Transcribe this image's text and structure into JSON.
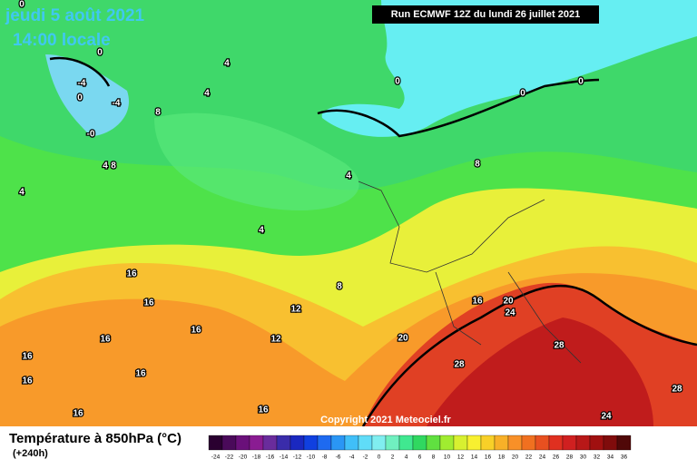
{
  "header": {
    "date": "jeudi 5 août 2021",
    "time": "14:00 locale",
    "run": "Run ECMWF 12Z du lundi 26 juillet 2021",
    "copyright": "Copyright 2021 Meteociel.fr"
  },
  "legend": {
    "title": "Température à 850hPa (°C)",
    "lead": "(+240h)",
    "labels": [
      -24,
      -22,
      -20,
      -18,
      -16,
      -14,
      -12,
      -10,
      -8,
      -6,
      -4,
      -2,
      0,
      2,
      4,
      6,
      8,
      10,
      12,
      14,
      16,
      18,
      20,
      22,
      24,
      26,
      28,
      30,
      32,
      34,
      36
    ],
    "colors": [
      "#2a0030",
      "#4a0a5a",
      "#6a107a",
      "#8a1c92",
      "#6a2c9c",
      "#3a2caa",
      "#1a28c0",
      "#1040e0",
      "#1e6af0",
      "#2a96f5",
      "#40bff8",
      "#60dcf8",
      "#80eef0",
      "#70f0c0",
      "#40e890",
      "#30d860",
      "#60e040",
      "#a0ec30",
      "#d8f030",
      "#f8f030",
      "#f8d028",
      "#f8b028",
      "#f89028",
      "#f07020",
      "#e85020",
      "#e03020",
      "#d02020",
      "#b81818",
      "#a01010",
      "#800c0c",
      "#500808"
    ]
  },
  "map": {
    "contour_labels": [
      0,
      0,
      -4,
      0,
      -4,
      "-0",
      4,
      4,
      8,
      4,
      8,
      4,
      4,
      4,
      0,
      0,
      0,
      8,
      16,
      16,
      8,
      12,
      16,
      16,
      12,
      16,
      16,
      16,
      16,
      16,
      16,
      20,
      24,
      20,
      28,
      28,
      28,
      24
    ]
  }
}
